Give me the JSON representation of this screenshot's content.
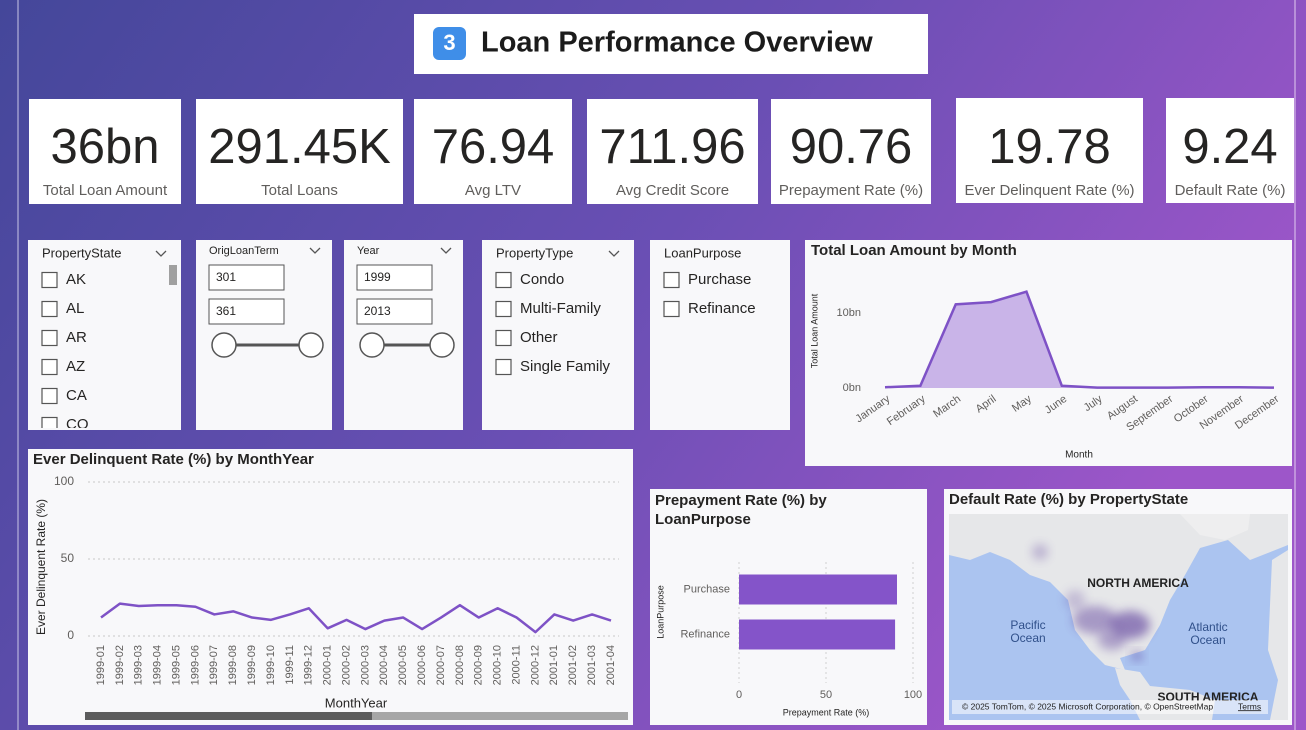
{
  "header": {
    "icon": "3",
    "title": "Loan Performance Overview"
  },
  "kpis": [
    {
      "value": "36bn",
      "label": "Total Loan Amount"
    },
    {
      "value": "291.45K",
      "label": "Total Loans"
    },
    {
      "value": "76.94",
      "label": "Avg LTV"
    },
    {
      "value": "711.96",
      "label": "Avg Credit Score"
    },
    {
      "value": "90.76",
      "label": "Prepayment Rate (%)"
    },
    {
      "value": "19.78",
      "label": "Ever Delinquent Rate (%)"
    },
    {
      "value": "9.24",
      "label": "Default Rate (%)"
    }
  ],
  "slicers": [
    {
      "title": "PropertyState",
      "items": [
        "AK",
        "AL",
        "AR",
        "AZ",
        "CA",
        "CO"
      ]
    },
    {
      "title": "OrigLoanTerm",
      "range": [
        301,
        361
      ]
    },
    {
      "title": "Year",
      "range": [
        1999,
        2013
      ]
    },
    {
      "title": "PropertyType",
      "items": [
        "Condo",
        "Multi-Family",
        "Other",
        "Single Family"
      ]
    },
    {
      "title": "LoanPurpose",
      "items": [
        "Purchase",
        "Refinance"
      ]
    }
  ],
  "chart_data": [
    {
      "type": "area",
      "title": "Total Loan Amount by Month",
      "x_label": "Month",
      "y_label": "Total Loan Amount",
      "categories": [
        "January",
        "February",
        "March",
        "April",
        "May",
        "June",
        "July",
        "August",
        "September",
        "October",
        "November",
        "December"
      ],
      "values": [
        0.1,
        0.3,
        11.2,
        11.5,
        12.9,
        0.3,
        0.05,
        0.05,
        0.05,
        0.1,
        0.1,
        0.05
      ],
      "color": "#7e52c6",
      "ylim": [
        0,
        15
      ],
      "yticks": [
        {
          "value": 0,
          "label": "0bn"
        },
        {
          "value": 10,
          "label": "10bn"
        }
      ],
      "grid": false
    },
    {
      "type": "line",
      "title": "Ever Delinquent Rate (%) by MonthYear",
      "x_label": "MonthYear",
      "y_label": "Ever Delinquent Rate (%)",
      "categories": [
        "1999-01",
        "1999-02",
        "1999-03",
        "1999-04",
        "1999-05",
        "1999-06",
        "1999-07",
        "1999-08",
        "1999-09",
        "1999-10",
        "1999-11",
        "1999-12",
        "2000-01",
        "2000-02",
        "2000-03",
        "2000-04",
        "2000-05",
        "2000-06",
        "2000-07",
        "2000-08",
        "2000-09",
        "2000-10",
        "2000-11",
        "2000-12",
        "2001-01",
        "2001-02",
        "2001-03",
        "2001-04"
      ],
      "values": [
        12,
        21,
        19.5,
        20,
        20,
        19,
        14,
        16,
        12,
        10.5,
        14,
        18,
        5,
        10.5,
        4.5,
        10,
        12,
        4.5,
        12,
        20,
        12,
        18,
        12,
        2.5,
        14,
        10,
        14,
        10
      ],
      "color": "#7e52c6",
      "ylim": [
        0,
        100
      ],
      "yticks": [
        0,
        50,
        100
      ],
      "grid": true
    },
    {
      "type": "hbar",
      "title": "Prepayment Rate (%) by LoanPurpose",
      "x_label": "Prepayment Rate (%)",
      "y_label": "LoanPurpose",
      "categories": [
        "Purchase",
        "Refinance"
      ],
      "values": [
        90.8,
        89.7
      ],
      "color": "#8454c9",
      "xlim": [
        0,
        100
      ],
      "xticks": [
        0,
        50,
        100
      ],
      "grid": true
    },
    {
      "type": "map",
      "title": "Default Rate (%) by PropertyState",
      "labels": [
        "NORTH AMERICA",
        "Pacific Ocean",
        "Atlantic Ocean",
        "SOUTH AMERICA"
      ],
      "attribution": "© 2025 TomTom, © 2025 Microsoft Corporation, © OpenStreetMap",
      "terms": "Terms"
    }
  ]
}
